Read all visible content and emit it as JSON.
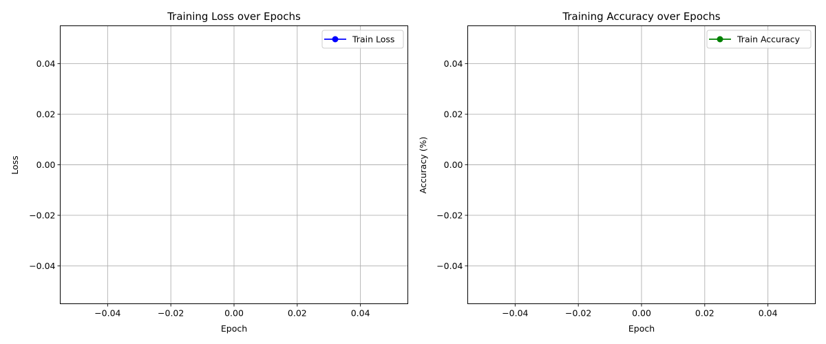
{
  "chart_data": [
    {
      "type": "line",
      "title": "Training Loss over Epochs",
      "xlabel": "Epoch",
      "ylabel": "Loss",
      "xlim": [
        -0.055,
        0.055
      ],
      "ylim": [
        -0.055,
        0.055
      ],
      "xticks": [
        "−0.04",
        "−0.02",
        "0.00",
        "0.02",
        "0.04"
      ],
      "xtick_values": [
        -0.04,
        -0.02,
        0.0,
        0.02,
        0.04
      ],
      "yticks": [
        "−0.04",
        "−0.02",
        "0.00",
        "0.02",
        "0.04"
      ],
      "ytick_values": [
        -0.04,
        -0.02,
        0.0,
        0.02,
        0.04
      ],
      "grid": true,
      "legend_position": "top-right",
      "series": [
        {
          "name": "Train Loss",
          "color": "#0000ff",
          "marker": "circle",
          "x": [],
          "y": []
        }
      ]
    },
    {
      "type": "line",
      "title": "Training Accuracy over Epochs",
      "xlabel": "Epoch",
      "ylabel": "Accuracy (%)",
      "xlim": [
        -0.055,
        0.055
      ],
      "ylim": [
        -0.055,
        0.055
      ],
      "xticks": [
        "−0.04",
        "−0.02",
        "0.00",
        "0.02",
        "0.04"
      ],
      "xtick_values": [
        -0.04,
        -0.02,
        0.0,
        0.02,
        0.04
      ],
      "yticks": [
        "−0.04",
        "−0.02",
        "0.00",
        "0.02",
        "0.04"
      ],
      "ytick_values": [
        -0.04,
        -0.02,
        0.0,
        0.02,
        0.04
      ],
      "grid": true,
      "legend_position": "top-right",
      "series": [
        {
          "name": "Train Accuracy",
          "color": "#008000",
          "marker": "circle",
          "x": [],
          "y": []
        }
      ]
    }
  ]
}
